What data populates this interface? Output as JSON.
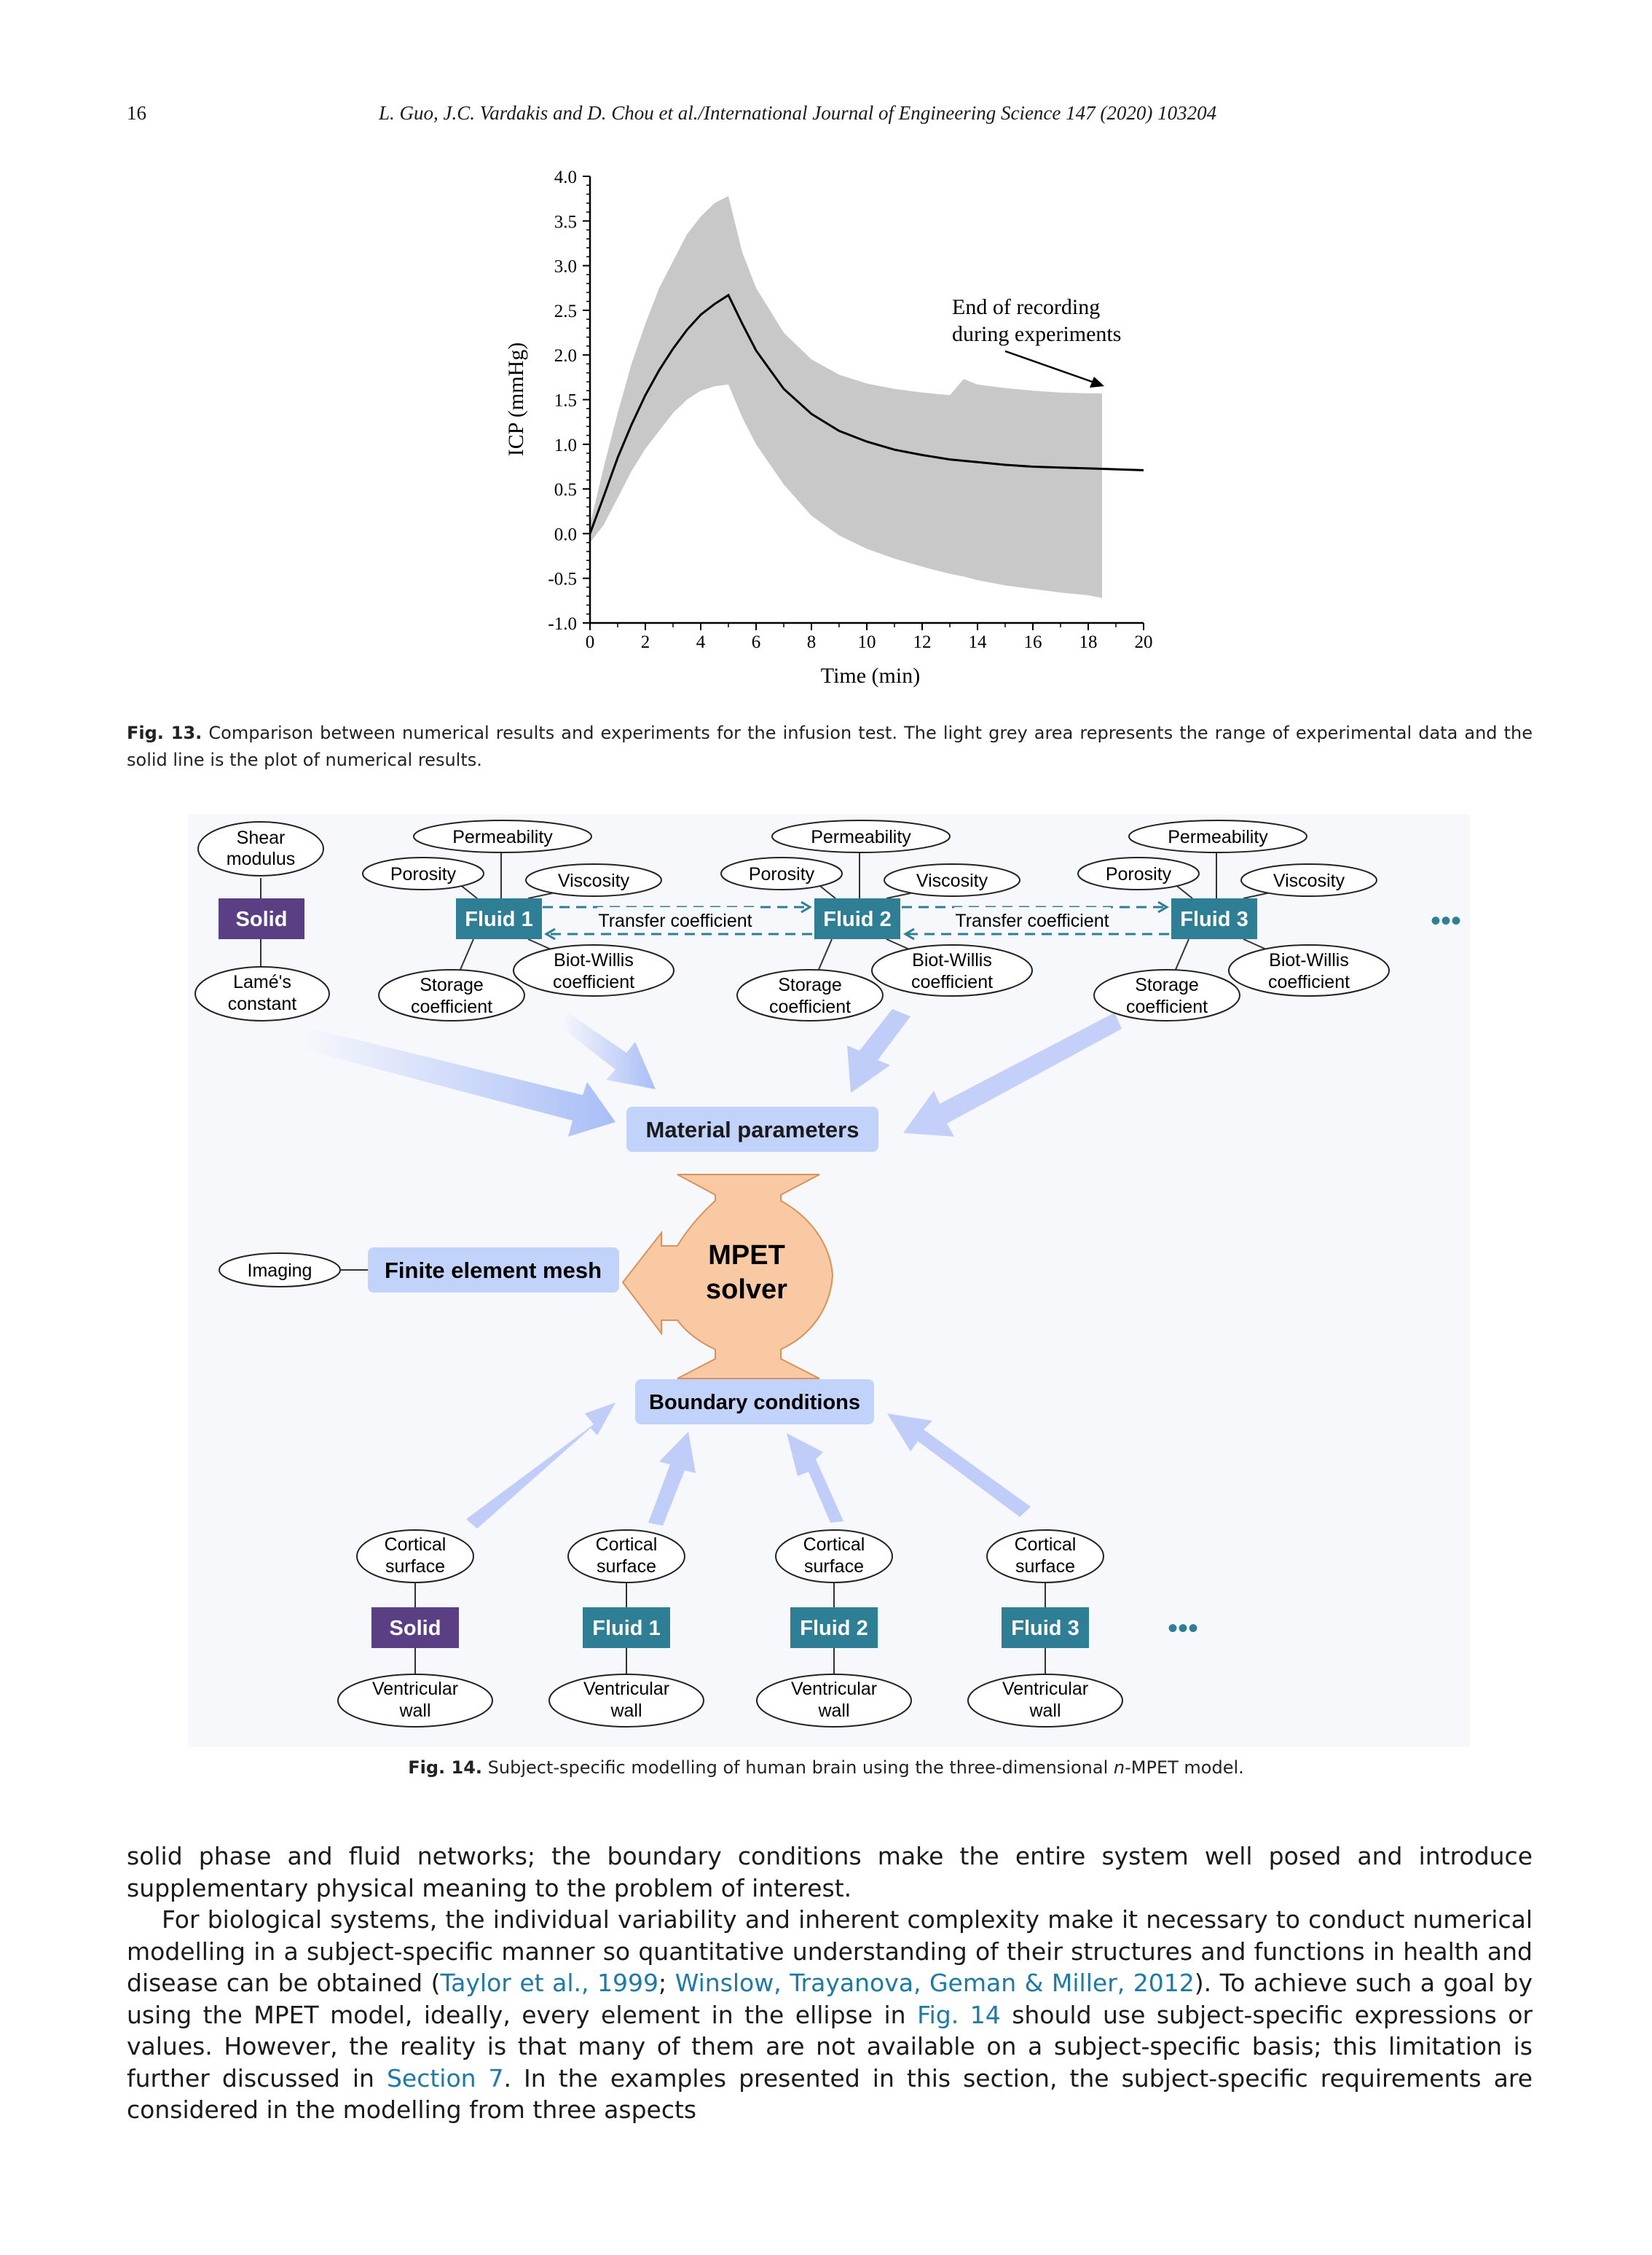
{
  "header": {
    "page_number": "16",
    "running_title": "L. Guo, J.C. Vardakis and D. Chou et al./International Journal of Engineering Science 147 (2020) 103204"
  },
  "figure13": {
    "caption_label": "Fig. 13.",
    "caption_text": "Comparison between numerical results and experiments for the infusion test. The light grey area represents the range of experimental data and the solid line is the plot of numerical results.",
    "annotation": [
      "End of recording",
      "during experiments"
    ]
  },
  "chart_data": {
    "type": "line",
    "xlabel": "Time (min)",
    "ylabel": "ICP (mmHg)",
    "xlim": [
      0,
      20
    ],
    "ylim": [
      -1.0,
      4.0
    ],
    "x_ticks": [
      "0",
      "2",
      "4",
      "6",
      "8",
      "10",
      "12",
      "14",
      "16",
      "18",
      "20"
    ],
    "y_ticks": [
      "-1.0",
      "-0.5",
      "0.0",
      "0.5",
      "1.0",
      "1.5",
      "2.0",
      "2.5",
      "3.0",
      "3.5",
      "4.0"
    ],
    "series": [
      {
        "kind": "line",
        "color": "#000000",
        "x": [
          0,
          0.5,
          1,
          1.5,
          2,
          2.5,
          3,
          3.5,
          4,
          4.5,
          5,
          5.5,
          6,
          7,
          8,
          9,
          10,
          11,
          12,
          13,
          14,
          15,
          16,
          17,
          18,
          19,
          20
        ],
        "y": [
          0.0,
          0.42,
          0.85,
          1.22,
          1.55,
          1.83,
          2.07,
          2.28,
          2.45,
          2.57,
          2.67,
          2.35,
          2.05,
          1.62,
          1.34,
          1.15,
          1.03,
          0.94,
          0.88,
          0.83,
          0.8,
          0.77,
          0.75,
          0.74,
          0.73,
          0.72,
          0.71
        ]
      },
      {
        "kind": "band",
        "color": "#c8c8c8",
        "x": [
          0,
          0.5,
          1,
          1.5,
          2,
          2.5,
          3,
          3.5,
          4,
          4.5,
          5,
          5.5,
          6,
          7,
          8,
          9,
          10,
          11,
          12,
          13,
          13.5,
          14,
          15,
          16,
          17,
          18,
          18.5
        ],
        "upper": [
          0.1,
          0.75,
          1.35,
          1.9,
          2.35,
          2.75,
          3.05,
          3.35,
          3.55,
          3.7,
          3.78,
          3.15,
          2.75,
          2.25,
          1.95,
          1.78,
          1.68,
          1.62,
          1.58,
          1.55,
          1.73,
          1.67,
          1.63,
          1.6,
          1.58,
          1.57,
          1.57
        ],
        "lower": [
          -0.1,
          0.1,
          0.4,
          0.7,
          0.95,
          1.15,
          1.35,
          1.5,
          1.6,
          1.65,
          1.67,
          1.3,
          1.0,
          0.55,
          0.2,
          -0.02,
          -0.17,
          -0.28,
          -0.37,
          -0.45,
          -0.48,
          -0.52,
          -0.58,
          -0.62,
          -0.66,
          -0.69,
          -0.72
        ]
      }
    ]
  },
  "figure14": {
    "caption_label": "Fig. 14.",
    "caption_text_before": "Subject-specific modelling of human brain using the three-dimensional ",
    "caption_italic": "n",
    "caption_text_after": "-MPET model.",
    "solid_params": {
      "top": [
        "Shear",
        "modulus"
      ],
      "box": "Solid",
      "bottom": [
        "Lamé's",
        "constant"
      ]
    },
    "fluids": [
      {
        "box": "Fluid 1",
        "permeability": "Permeability",
        "porosity": "Porosity",
        "viscosity": "Viscosity",
        "biot": [
          "Biot-Willis",
          "coefficient"
        ],
        "storage": [
          "Storage",
          "coefficient"
        ]
      },
      {
        "box": "Fluid 2",
        "permeability": "Permeability",
        "porosity": "Porosity",
        "viscosity": "Viscosity",
        "biot": [
          "Biot-Willis",
          "coefficient"
        ],
        "storage": [
          "Storage",
          "coefficient"
        ]
      },
      {
        "box": "Fluid 3",
        "permeability": "Permeability",
        "porosity": "Porosity",
        "viscosity": "Viscosity",
        "biot": [
          "Biot-Willis",
          "coefficient"
        ],
        "storage": [
          "Storage",
          "coefficient"
        ]
      }
    ],
    "transfer_labels": [
      "Transfer coefficient",
      "Transfer coefficient"
    ],
    "ellipsis": "•••",
    "material_parameters": "Material parameters",
    "imaging": "Imaging",
    "finite_element_mesh": "Finite element mesh",
    "solver": [
      "MPET",
      "solver"
    ],
    "boundary_conditions": "Boundary conditions",
    "boundary_nodes": [
      {
        "box": "Solid",
        "top": [
          "Cortical",
          "surface"
        ],
        "bottom": [
          "Ventricular",
          "wall"
        ]
      },
      {
        "box": "Fluid 1",
        "top": [
          "Cortical",
          "surface"
        ],
        "bottom": [
          "Ventricular",
          "wall"
        ]
      },
      {
        "box": "Fluid 2",
        "top": [
          "Cortical",
          "surface"
        ],
        "bottom": [
          "Ventricular",
          "wall"
        ]
      },
      {
        "box": "Fluid 3",
        "top": [
          "Cortical",
          "surface"
        ],
        "bottom": [
          "Ventricular",
          "wall"
        ]
      }
    ],
    "colors": {
      "solid": "#5b3f84",
      "fluid": "#2e7f96",
      "bluebox": "#c2d3fb",
      "solver": "#f9c9a3",
      "arrow": "#a9bef7"
    }
  },
  "body": {
    "p1": "solid phase and fluid networks; the boundary conditions make the entire system well posed and introduce supplementary physical meaning to the problem of interest.",
    "p2_a": "For biological systems, the individual variability and inherent complexity make it necessary to conduct numerical modelling in a subject-specific manner so quantitative understanding of their structures and functions in health and disease can be obtained (",
    "ref1": "Taylor et al., 1999",
    "p2_sep": "; ",
    "ref2": "Winslow, Trayanova, Geman & Miller, 2012",
    "p2_b": "). To achieve such a goal by using the MPET model, ideally, every element in the ellipse in ",
    "ref3": "Fig. 14",
    "p2_c": " should use subject-specific expressions or values. However, the reality is that many of them are not available on a subject-specific basis; this limitation is further discussed in ",
    "ref4": "Section 7",
    "p2_d": ". In the examples presented in this section, the subject-specific requirements are considered in the modelling from three aspects"
  }
}
